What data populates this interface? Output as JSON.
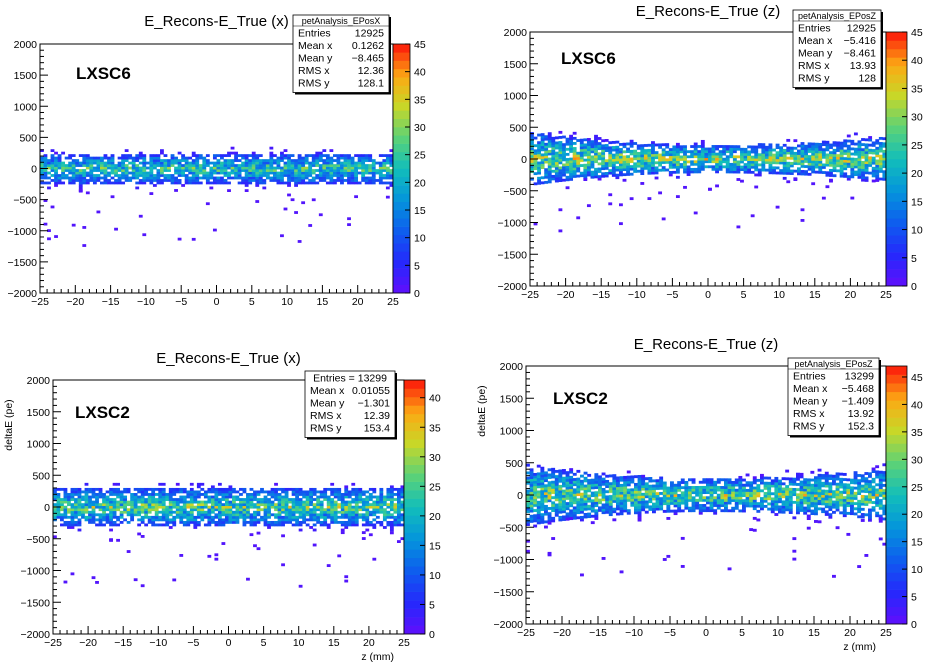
{
  "chart_data": [
    {
      "type": "heatmap",
      "title": "E_Recons-E_True (x)",
      "label": "LXSC6",
      "xlabel": "",
      "ylabel": "",
      "xlim": [
        -25,
        25
      ],
      "ylim": [
        -2000,
        2000
      ],
      "zlim": [
        0,
        45
      ],
      "xticks": [
        "−25",
        "−20",
        "−15",
        "−10",
        "−5",
        "0",
        "5",
        "10",
        "15",
        "20",
        "25"
      ],
      "yticks": [
        "−2000",
        "−1500",
        "−1000",
        "−500",
        "0",
        "500",
        "1000",
        "1500",
        "2000"
      ],
      "zticks": [
        "0",
        "5",
        "10",
        "15",
        "20",
        "25",
        "30",
        "35",
        "40",
        "45"
      ],
      "band": {
        "center": 0,
        "half_width": 250,
        "edge_spread": 0,
        "peak": 28
      },
      "stats": {
        "name": "petAnalysis_EPosX",
        "rows": [
          [
            "Entries",
            "12925"
          ],
          [
            "Mean x",
            "0.1262"
          ],
          [
            "Mean y",
            "−8.465"
          ],
          [
            "RMS x",
            "12.36"
          ],
          [
            "RMS y",
            "128.1"
          ]
        ]
      }
    },
    {
      "type": "heatmap",
      "title": "E_Recons-E_True (z)",
      "label": "LXSC6",
      "xlabel": "",
      "ylabel": "",
      "xlim": [
        -25,
        25
      ],
      "ylim": [
        -2000,
        2000
      ],
      "zlim": [
        0,
        45
      ],
      "xticks": [
        "−25",
        "−20",
        "−15",
        "−10",
        "−5",
        "0",
        "5",
        "10",
        "15",
        "20",
        "25"
      ],
      "yticks": [
        "−2000",
        "−1500",
        "−1000",
        "−500",
        "0",
        "500",
        "1000",
        "1500",
        "2000"
      ],
      "zticks": [
        "0",
        "5",
        "10",
        "15",
        "20",
        "25",
        "30",
        "35",
        "40",
        "45"
      ],
      "band": {
        "center": 0,
        "half_width": 220,
        "edge_spread": 200,
        "peak": 35
      },
      "stats": {
        "name": "petAnalysis_EPosZ",
        "rows": [
          [
            "Entries",
            "12925"
          ],
          [
            "Mean x",
            "−5.416"
          ],
          [
            "Mean y",
            "−8.461"
          ],
          [
            "RMS x",
            "13.93"
          ],
          [
            "RMS y",
            "128"
          ]
        ]
      }
    },
    {
      "type": "heatmap",
      "title": "E_Recons-E_True (x)",
      "label": "LXSC2",
      "xlabel": "z (mm)",
      "ylabel": "deltaE (pe)",
      "xlim": [
        -25,
        25
      ],
      "ylim": [
        -2000,
        2000
      ],
      "zlim": [
        0,
        43
      ],
      "xticks": [
        "−25",
        "−20",
        "−15",
        "−10",
        "−5",
        "0",
        "5",
        "10",
        "15",
        "20",
        "25"
      ],
      "yticks": [
        "−2000",
        "−1500",
        "−1000",
        "−500",
        "0",
        "500",
        "1000",
        "1500",
        "2000"
      ],
      "zticks": [
        "0",
        "5",
        "10",
        "15",
        "20",
        "25",
        "30",
        "35",
        "40"
      ],
      "band": {
        "center": 0,
        "half_width": 300,
        "edge_spread": 0,
        "peak": 30
      },
      "stats": {
        "name": "",
        "rows": [
          [
            "Entries = 13299",
            ""
          ],
          [
            "Mean x",
            "0.01055"
          ],
          [
            "Mean y",
            "−1.301"
          ],
          [
            "RMS x",
            "12.39"
          ],
          [
            "RMS y",
            "153.4"
          ]
        ]
      }
    },
    {
      "type": "heatmap",
      "title": "E_Recons-E_True (z)",
      "label": "LXSC2",
      "xlabel": "z (mm)",
      "ylabel": "deltaE (pe)",
      "xlim": [
        -25,
        25
      ],
      "ylim": [
        -2000,
        2000
      ],
      "zlim": [
        0,
        47
      ],
      "xticks": [
        "−25",
        "−20",
        "−15",
        "−10",
        "−5",
        "0",
        "5",
        "10",
        "15",
        "20",
        "25"
      ],
      "yticks": [
        "−2000",
        "−1500",
        "−1000",
        "−500",
        "0",
        "500",
        "1000",
        "1500",
        "2000"
      ],
      "zticks": [
        "0",
        "5",
        "10",
        "15",
        "20",
        "25",
        "30",
        "35",
        "40",
        "45"
      ],
      "band": {
        "center": 0,
        "half_width": 260,
        "edge_spread": 220,
        "peak": 35
      },
      "stats": {
        "name": "petAnalysis_EPosZ",
        "rows": [
          [
            "Entries",
            "13299"
          ],
          [
            "Mean x",
            "−5.468"
          ],
          [
            "Mean y",
            "−1.409"
          ],
          [
            "RMS x",
            "13.92"
          ],
          [
            "RMS y",
            "152.3"
          ]
        ]
      }
    }
  ]
}
